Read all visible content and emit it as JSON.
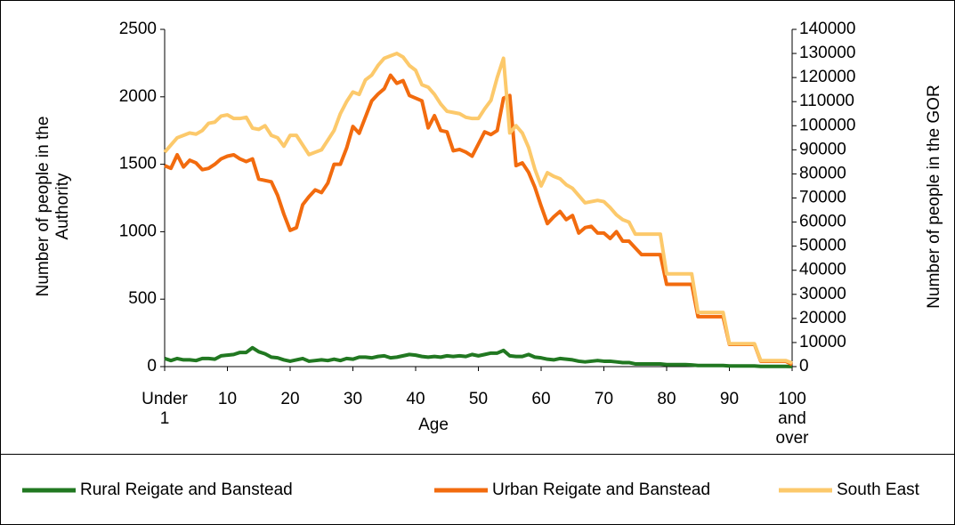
{
  "chart_data": {
    "type": "line",
    "x_label": "Age",
    "y_label": "Number of people in the Authority",
    "y2_label": "Number of people in the GOR",
    "categories": [
      "Under 1",
      null,
      null,
      null,
      null,
      null,
      null,
      null,
      null,
      null,
      "10",
      null,
      null,
      null,
      null,
      null,
      null,
      null,
      null,
      null,
      "20",
      null,
      null,
      null,
      null,
      null,
      null,
      null,
      null,
      null,
      "30",
      null,
      null,
      null,
      null,
      null,
      null,
      null,
      null,
      null,
      "40",
      null,
      null,
      null,
      null,
      null,
      null,
      null,
      null,
      null,
      "50",
      null,
      null,
      null,
      null,
      null,
      null,
      null,
      null,
      null,
      "60",
      null,
      null,
      null,
      null,
      null,
      null,
      null,
      null,
      null,
      "70",
      null,
      null,
      null,
      null,
      null,
      null,
      null,
      null,
      null,
      "80",
      null,
      null,
      null,
      null,
      null,
      null,
      null,
      null,
      null,
      "90",
      null,
      null,
      null,
      null,
      null,
      null,
      null,
      null,
      null,
      "100 and over"
    ],
    "series": [
      {
        "name": "Rural Reigate and Banstead",
        "color": "#217821",
        "axis": "y",
        "values": [
          60,
          45,
          60,
          50,
          50,
          45,
          60,
          60,
          55,
          80,
          85,
          90,
          105,
          105,
          140,
          110,
          95,
          70,
          65,
          50,
          40,
          50,
          60,
          40,
          45,
          50,
          45,
          55,
          45,
          60,
          55,
          70,
          70,
          65,
          75,
          80,
          65,
          70,
          80,
          90,
          85,
          75,
          70,
          75,
          70,
          80,
          75,
          80,
          75,
          90,
          80,
          90,
          100,
          100,
          120,
          80,
          75,
          75,
          90,
          70,
          65,
          55,
          50,
          60,
          55,
          50,
          40,
          35,
          40,
          45,
          40,
          40,
          35,
          30,
          30,
          20,
          20,
          20,
          20,
          20,
          15,
          15,
          15,
          15,
          12,
          8,
          8,
          8,
          8,
          8,
          5,
          5,
          5,
          5,
          5,
          2,
          2,
          2,
          2,
          2,
          1
        ]
      },
      {
        "name": "Urban Reigate and Banstead",
        "color": "#f26b0e",
        "axis": "y",
        "values": [
          1490,
          1470,
          1570,
          1480,
          1530,
          1510,
          1460,
          1470,
          1500,
          1540,
          1560,
          1570,
          1540,
          1520,
          1540,
          1390,
          1380,
          1370,
          1270,
          1130,
          1010,
          1030,
          1200,
          1260,
          1310,
          1290,
          1360,
          1500,
          1500,
          1620,
          1780,
          1730,
          1850,
          1970,
          2020,
          2060,
          2160,
          2100,
          2120,
          2010,
          1990,
          1970,
          1770,
          1860,
          1750,
          1740,
          1600,
          1610,
          1590,
          1560,
          1650,
          1740,
          1720,
          1750,
          1990,
          2010,
          1490,
          1510,
          1440,
          1330,
          1190,
          1060,
          1110,
          1150,
          1090,
          1120,
          990,
          1030,
          1040,
          990,
          990,
          950,
          1000,
          930,
          930,
          880,
          830,
          830,
          830,
          830,
          610,
          610,
          610,
          610,
          610,
          370,
          370,
          370,
          370,
          370,
          165,
          165,
          165,
          165,
          165,
          40,
          40,
          40,
          40,
          40,
          15
        ]
      },
      {
        "name": "South East",
        "color": "#fcc96b",
        "axis": "y2",
        "values": [
          89000,
          92000,
          95000,
          96000,
          97000,
          96500,
          98000,
          101000,
          101500,
          104000,
          104500,
          103000,
          103000,
          103500,
          99000,
          98500,
          100000,
          96000,
          95000,
          91500,
          96000,
          96000,
          92000,
          88000,
          89000,
          90000,
          94000,
          98000,
          105000,
          110000,
          114000,
          113000,
          119000,
          121000,
          125000,
          128000,
          129000,
          130000,
          128500,
          125000,
          123000,
          117000,
          116000,
          113000,
          109000,
          106000,
          105500,
          105000,
          103500,
          103000,
          103000,
          107000,
          110500,
          120000,
          128000,
          97000,
          100000,
          97000,
          91000,
          82000,
          75000,
          80500,
          79000,
          78000,
          75500,
          74000,
          71000,
          68000,
          68500,
          69000,
          68500,
          66000,
          63000,
          61000,
          60000,
          55000,
          55000,
          55000,
          55000,
          55000,
          38500,
          38500,
          38500,
          38500,
          38500,
          22500,
          22500,
          22500,
          22500,
          22500,
          9500,
          9500,
          9500,
          9500,
          9500,
          2500,
          2500,
          2500,
          2500,
          2500,
          1500
        ]
      }
    ],
    "ylim": [
      0,
      2500
    ],
    "yticks": [
      0,
      500,
      1000,
      1500,
      2000,
      2500
    ],
    "y2lim": [
      0,
      140000
    ],
    "y2ticks": [
      0,
      10000,
      20000,
      30000,
      40000,
      50000,
      60000,
      70000,
      80000,
      90000,
      100000,
      110000,
      120000,
      130000,
      140000
    ],
    "grid": false,
    "legend": "bottom"
  }
}
